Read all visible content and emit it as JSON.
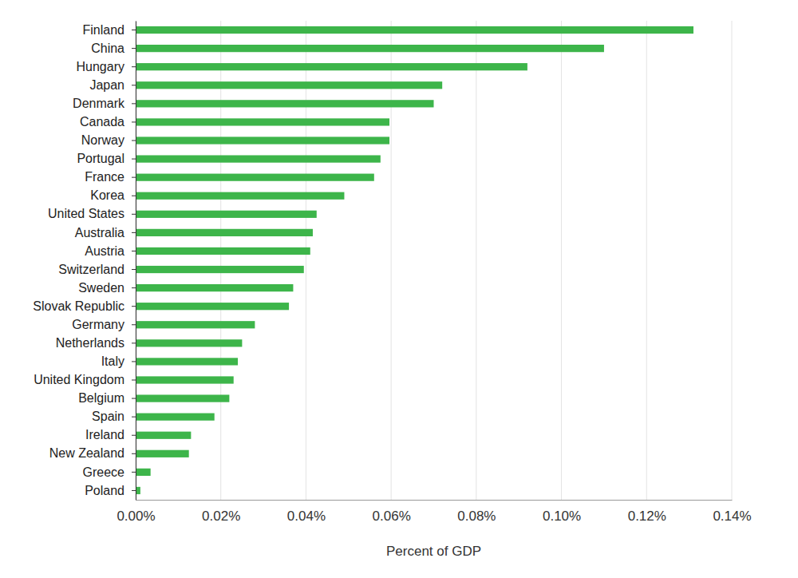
{
  "chart_data": {
    "type": "bar",
    "orientation": "horizontal",
    "categories": [
      "Finland",
      "China",
      "Hungary",
      "Japan",
      "Denmark",
      "Canada",
      "Norway",
      "Portugal",
      "France",
      "Korea",
      "United States",
      "Australia",
      "Austria",
      "Switzerland",
      "Sweden",
      "Slovak Republic",
      "Germany",
      "Netherlands",
      "Italy",
      "United Kingdom",
      "Belgium",
      "Spain",
      "Ireland",
      "New Zealand",
      "Greece",
      "Poland"
    ],
    "values": [
      0.131,
      0.11,
      0.092,
      0.072,
      0.07,
      0.0596,
      0.0596,
      0.0575,
      0.056,
      0.049,
      0.0425,
      0.0416,
      0.041,
      0.0395,
      0.037,
      0.036,
      0.028,
      0.025,
      0.024,
      0.023,
      0.022,
      0.0185,
      0.013,
      0.0125,
      0.0035,
      0.0011
    ],
    "color": "#3db54a",
    "x_label": "Percent of GDP",
    "xlim": [
      0,
      0.14
    ],
    "xticks": [
      {
        "value": 0,
        "label": "0.00%"
      },
      {
        "value": 0.02,
        "label": "0.02%"
      },
      {
        "value": 0.04,
        "label": "0.04%"
      },
      {
        "value": 0.06,
        "label": "0.06%"
      },
      {
        "value": 0.08,
        "label": "0.08%"
      },
      {
        "value": 0.1,
        "label": "0.10%"
      },
      {
        "value": 0.12,
        "label": "0.12%"
      },
      {
        "value": 0.14,
        "label": "0.14%"
      }
    ],
    "grid": true
  }
}
